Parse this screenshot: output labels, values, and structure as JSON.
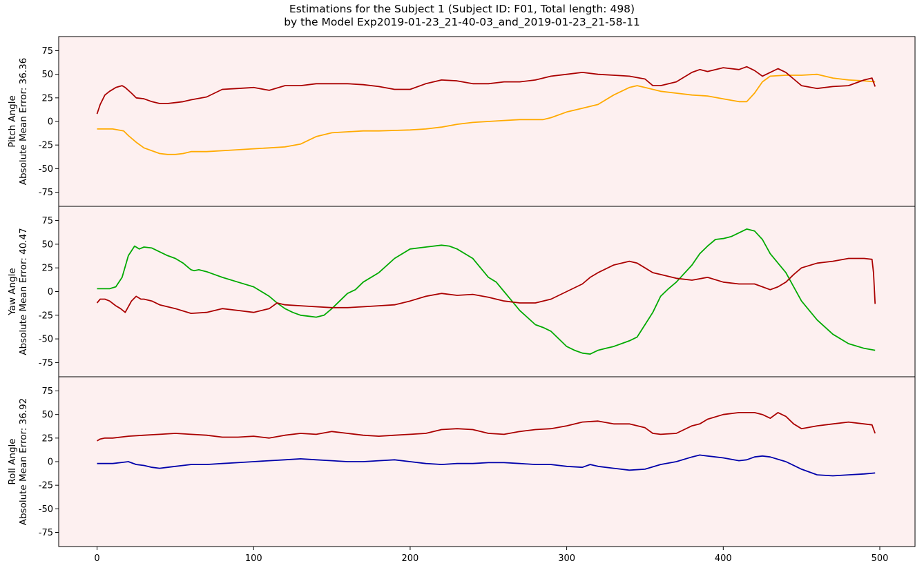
{
  "title": {
    "line1": "Estimations for the Subject 1 (Subject ID: F01, Total length: 498)",
    "line2": "by the Model Exp2019-01-23_21-40-03_and_2019-01-23_21-58-11"
  },
  "colors": {
    "background": "#fdf0f0",
    "estimate": "#aa0000",
    "pitch_truth": "#ffaa00",
    "yaw_truth": "#00aa00",
    "roll_truth": "#0000aa"
  },
  "chart_data": [
    {
      "type": "line",
      "ylabel_line1": "Pitch Angle",
      "ylabel_line2": "Absolute Mean Error: 36.36",
      "ylim": [
        -90,
        90
      ],
      "xlim": [
        -24.5,
        522.5
      ],
      "yticks": [
        -75,
        -50,
        -25,
        0,
        25,
        50,
        75
      ],
      "series": [
        {
          "color": "#ffaa00",
          "x": [
            0,
            10,
            17,
            20,
            25,
            30,
            40,
            45,
            50,
            55,
            60,
            70,
            80,
            90,
            100,
            110,
            120,
            130,
            135,
            140,
            150,
            160,
            170,
            180,
            190,
            200,
            210,
            220,
            230,
            240,
            250,
            260,
            270,
            280,
            285,
            290,
            300,
            310,
            320,
            330,
            340,
            345,
            350,
            360,
            370,
            380,
            390,
            400,
            410,
            415,
            420,
            425,
            430,
            440,
            450,
            460,
            470,
            480,
            490,
            497
          ],
          "y": [
            -8,
            -8,
            -10,
            -15,
            -22,
            -28,
            -34,
            -35,
            -35,
            -34,
            -32,
            -32,
            -31,
            -30,
            -29,
            -28,
            -27,
            -24,
            -20,
            -16,
            -12,
            -11,
            -10,
            -10,
            -9.5,
            -9,
            -8,
            -6,
            -3,
            -1,
            0,
            1,
            2,
            2,
            2,
            4,
            10,
            14,
            18,
            28,
            36,
            38,
            36,
            32,
            30,
            28,
            27,
            24,
            21,
            21,
            30,
            42,
            48,
            49,
            49,
            50,
            46,
            44,
            43,
            42
          ]
        },
        {
          "color": "#aa0000",
          "x": [
            0,
            2,
            5,
            8,
            12,
            16,
            18,
            22,
            25,
            30,
            35,
            40,
            45,
            50,
            55,
            60,
            70,
            80,
            90,
            100,
            110,
            120,
            130,
            140,
            150,
            160,
            170,
            180,
            190,
            200,
            210,
            220,
            230,
            240,
            250,
            260,
            270,
            280,
            290,
            300,
            310,
            320,
            330,
            340,
            350,
            355,
            360,
            370,
            380,
            385,
            390,
            400,
            410,
            415,
            420,
            425,
            430,
            435,
            440,
            445,
            450,
            460,
            470,
            480,
            490,
            495,
            497
          ],
          "y": [
            8,
            18,
            28,
            32,
            36,
            38,
            36,
            30,
            25,
            24,
            21,
            19,
            19,
            20,
            21,
            23,
            26,
            34,
            35,
            36,
            33,
            38,
            38,
            40,
            40,
            40,
            39,
            37,
            34,
            34,
            40,
            44,
            43,
            40,
            40,
            42,
            42,
            44,
            48,
            50,
            52,
            50,
            49,
            48,
            45,
            38,
            38,
            42,
            52,
            55,
            53,
            57,
            55,
            58,
            54,
            48,
            52,
            56,
            52,
            45,
            38,
            35,
            37,
            38,
            44,
            46,
            37
          ]
        }
      ]
    },
    {
      "type": "line",
      "ylabel_line1": "Yaw Angle",
      "ylabel_line2": "Absolute Mean Error: 40.47",
      "ylim": [
        -90,
        90
      ],
      "xlim": [
        -24.5,
        522.5
      ],
      "yticks": [
        -75,
        -50,
        -25,
        0,
        25,
        50,
        75
      ],
      "series": [
        {
          "color": "#00aa00",
          "x": [
            0,
            8,
            12,
            16,
            20,
            24,
            27,
            30,
            35,
            40,
            45,
            50,
            55,
            60,
            62,
            65,
            70,
            75,
            80,
            90,
            100,
            110,
            115,
            120,
            125,
            130,
            135,
            140,
            145,
            150,
            155,
            160,
            165,
            170,
            180,
            190,
            200,
            210,
            220,
            225,
            230,
            240,
            245,
            250,
            255,
            260,
            265,
            270,
            280,
            285,
            290,
            295,
            300,
            305,
            310,
            315,
            320,
            325,
            330,
            340,
            345,
            350,
            355,
            360,
            365,
            370,
            380,
            385,
            390,
            395,
            400,
            405,
            410,
            415,
            420,
            425,
            430,
            440,
            450,
            460,
            470,
            480,
            490,
            497
          ],
          "y": [
            3,
            3,
            5,
            15,
            38,
            48,
            45,
            47,
            46,
            42,
            38,
            35,
            30,
            23,
            22,
            23,
            21,
            18,
            15,
            10,
            5,
            -5,
            -12,
            -18,
            -22,
            -25,
            -26,
            -27,
            -25,
            -18,
            -10,
            -2,
            2,
            10,
            20,
            35,
            45,
            47,
            49,
            48,
            45,
            35,
            25,
            15,
            10,
            0,
            -10,
            -20,
            -35,
            -38,
            -42,
            -50,
            -58,
            -62,
            -65,
            -66,
            -62,
            -60,
            -58,
            -52,
            -48,
            -35,
            -22,
            -5,
            3,
            10,
            28,
            40,
            48,
            55,
            56,
            58,
            62,
            66,
            64,
            55,
            40,
            20,
            -10,
            -30,
            -45,
            -55,
            -60,
            -62
          ]
        },
        {
          "color": "#aa0000",
          "x": [
            0,
            2,
            5,
            8,
            12,
            15,
            18,
            22,
            25,
            28,
            30,
            35,
            40,
            50,
            60,
            70,
            80,
            90,
            100,
            110,
            115,
            120,
            130,
            140,
            150,
            160,
            170,
            180,
            190,
            200,
            210,
            220,
            230,
            240,
            250,
            260,
            270,
            280,
            290,
            300,
            310,
            315,
            320,
            330,
            340,
            345,
            350,
            355,
            360,
            370,
            380,
            390,
            400,
            410,
            420,
            425,
            430,
            435,
            440,
            445,
            450,
            460,
            470,
            480,
            490,
            495,
            496,
            497
          ],
          "y": [
            -12,
            -8,
            -8,
            -10,
            -15,
            -18,
            -22,
            -10,
            -5,
            -8,
            -8,
            -10,
            -14,
            -18,
            -23,
            -22,
            -18,
            -20,
            -22,
            -18,
            -12,
            -14,
            -15,
            -16,
            -17,
            -17,
            -16,
            -15,
            -14,
            -10,
            -5,
            -2,
            -4,
            -3,
            -6,
            -10,
            -12,
            -12,
            -8,
            0,
            8,
            15,
            20,
            28,
            32,
            30,
            25,
            20,
            18,
            14,
            12,
            15,
            10,
            8,
            8,
            5,
            2,
            5,
            10,
            18,
            25,
            30,
            32,
            35,
            35,
            34,
            20,
            -13
          ]
        }
      ]
    },
    {
      "type": "line",
      "ylabel_line1": "Roll Angle",
      "ylabel_line2": "Absolute Mean Error: 36.92",
      "ylim": [
        -90,
        90
      ],
      "xlim": [
        -24.5,
        522.5
      ],
      "yticks": [
        -75,
        -50,
        -25,
        0,
        25,
        50,
        75
      ],
      "xticks": [
        0,
        100,
        200,
        300,
        400,
        500
      ],
      "series": [
        {
          "color": "#0000aa",
          "x": [
            0,
            10,
            15,
            20,
            25,
            30,
            35,
            40,
            45,
            50,
            60,
            70,
            80,
            90,
            100,
            110,
            120,
            130,
            140,
            150,
            160,
            170,
            180,
            190,
            200,
            210,
            220,
            230,
            240,
            250,
            260,
            270,
            280,
            290,
            300,
            310,
            315,
            320,
            330,
            340,
            350,
            360,
            370,
            380,
            385,
            390,
            400,
            410,
            415,
            420,
            425,
            430,
            440,
            450,
            460,
            470,
            480,
            490,
            497
          ],
          "y": [
            -2,
            -2,
            -1,
            0,
            -3,
            -4,
            -6,
            -7,
            -6,
            -5,
            -3,
            -3,
            -2,
            -1,
            0,
            1,
            2,
            3,
            2,
            1,
            0,
            0,
            1,
            2,
            0,
            -2,
            -3,
            -2,
            -2,
            -1,
            -1,
            -2,
            -3,
            -3,
            -5,
            -6,
            -3,
            -5,
            -7,
            -9,
            -8,
            -3,
            0,
            5,
            7,
            6,
            4,
            1,
            2,
            5,
            6,
            5,
            0,
            -8,
            -14,
            -15,
            -14,
            -13,
            -12
          ]
        },
        {
          "color": "#aa0000",
          "x": [
            0,
            2,
            5,
            10,
            20,
            30,
            40,
            50,
            60,
            70,
            80,
            90,
            100,
            110,
            120,
            130,
            140,
            150,
            160,
            170,
            180,
            190,
            200,
            210,
            220,
            230,
            240,
            250,
            260,
            270,
            280,
            290,
            300,
            310,
            320,
            330,
            340,
            350,
            355,
            360,
            370,
            380,
            385,
            390,
            400,
            410,
            420,
            425,
            430,
            435,
            440,
            445,
            450,
            460,
            470,
            480,
            490,
            495,
            497
          ],
          "y": [
            22,
            24,
            25,
            25,
            27,
            28,
            29,
            30,
            29,
            28,
            26,
            26,
            27,
            25,
            28,
            30,
            29,
            32,
            30,
            28,
            27,
            28,
            29,
            30,
            34,
            35,
            34,
            30,
            29,
            32,
            34,
            35,
            38,
            42,
            43,
            40,
            40,
            36,
            30,
            29,
            30,
            38,
            40,
            45,
            50,
            52,
            52,
            50,
            46,
            52,
            48,
            40,
            35,
            38,
            40,
            42,
            40,
            39,
            30
          ]
        }
      ]
    }
  ]
}
